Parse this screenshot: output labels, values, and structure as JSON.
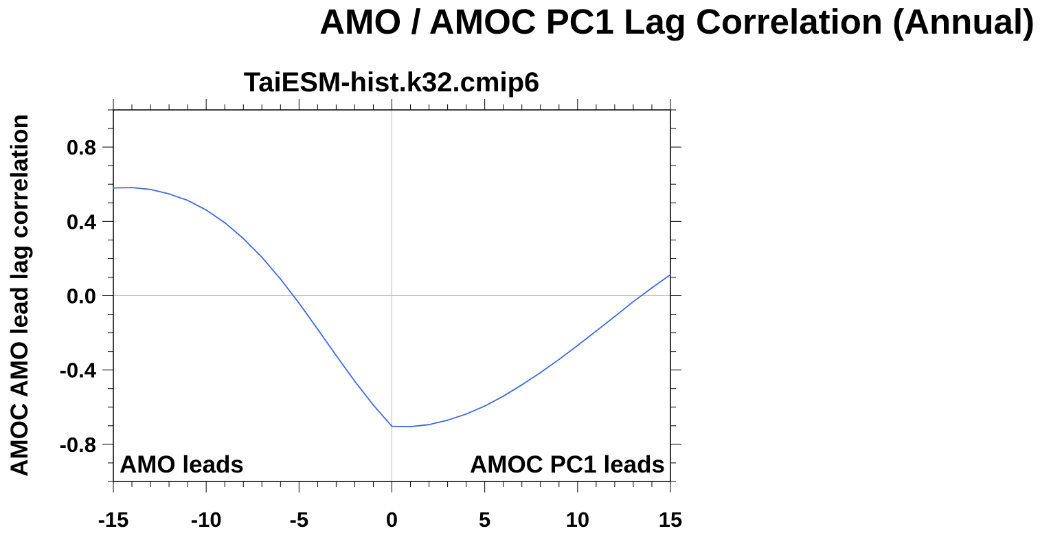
{
  "page_title": "AMO / AMOC PC1 Lag Correlation (Annual)",
  "chart_data": {
    "type": "line",
    "title": "TaiESM-hist.k32.cmip6",
    "xlabel": "",
    "ylabel": "AMOC AMO lead lag correlation",
    "xlim": [
      -15,
      15
    ],
    "ylim": [
      -1.0,
      1.0
    ],
    "x_ticks": [
      -15,
      -10,
      -5,
      0,
      5,
      10,
      15
    ],
    "x_tick_labels": [
      "-15",
      "-10",
      "-5",
      "0",
      "5",
      "10",
      "15"
    ],
    "y_ticks": [
      0.8,
      0.4,
      0.0,
      -0.4,
      -0.8
    ],
    "y_tick_labels": [
      "0.8",
      "0.4",
      "0.0",
      "-0.4",
      "-0.8"
    ],
    "reference_lines": {
      "x": 0,
      "y": 0
    },
    "grid": false,
    "annotations": {
      "left": "AMO leads",
      "right": "AMOC PC1 leads"
    },
    "line_color": "#4169e1",
    "series": [
      {
        "x": [
          -15,
          -14,
          -13,
          -12,
          -11,
          -10,
          -9,
          -8,
          -7,
          -6,
          -5,
          -4,
          -3,
          -2,
          -1,
          0,
          1,
          2,
          3,
          4,
          5,
          6,
          7,
          8,
          9,
          10,
          11,
          12,
          13,
          14,
          15
        ],
        "values": [
          0.58,
          0.582,
          0.572,
          0.548,
          0.513,
          0.461,
          0.393,
          0.308,
          0.207,
          0.09,
          -0.04,
          -0.18,
          -0.322,
          -0.46,
          -0.589,
          -0.703,
          -0.705,
          -0.694,
          -0.67,
          -0.637,
          -0.594,
          -0.541,
          -0.48,
          -0.414,
          -0.343,
          -0.268,
          -0.19,
          -0.112,
          -0.032,
          0.042,
          0.113
        ]
      }
    ]
  }
}
